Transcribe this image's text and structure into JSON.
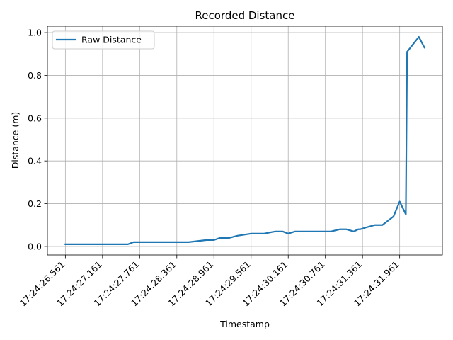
{
  "chart_data": {
    "type": "line",
    "title": "Recorded Distance",
    "xlabel": "Timestamp",
    "ylabel": "Distance (m)",
    "x_tick_labels": [
      "17:24:26.561",
      "17:24:27.161",
      "17:24:27.761",
      "17:24:28.361",
      "17:24:28.961",
      "17:24:29.561",
      "17:24:30.161",
      "17:24:30.761",
      "17:24:31.361",
      "17:24:31.961"
    ],
    "y_tick_values": [
      0.0,
      0.2,
      0.4,
      0.6,
      0.8,
      1.0
    ],
    "y_tick_labels": [
      "0.0",
      "0.2",
      "0.4",
      "0.6",
      "0.8",
      "1.0"
    ],
    "ylim": [
      -0.04,
      1.03
    ],
    "grid": true,
    "legend_position": "upper-left",
    "series": [
      {
        "name": "Raw Distance",
        "color": "#1f77b4",
        "timestamps": [
          "17:24:26.561",
          "17:24:26.821",
          "17:24:27.071",
          "17:24:27.321",
          "17:24:27.571",
          "17:24:27.661",
          "17:24:27.941",
          "17:24:28.201",
          "17:24:28.461",
          "17:24:28.551",
          "17:24:28.841",
          "17:24:28.961",
          "17:24:29.061",
          "17:24:29.211",
          "17:24:29.341",
          "17:24:29.561",
          "17:24:29.661",
          "17:24:29.771",
          "17:24:29.951",
          "17:24:30.071",
          "17:24:30.161",
          "17:24:30.271",
          "17:24:30.521",
          "17:24:30.711",
          "17:24:30.851",
          "17:24:30.991",
          "17:24:31.101",
          "17:24:31.221",
          "17:24:31.291",
          "17:24:31.321",
          "17:24:31.431",
          "17:24:31.561",
          "17:24:31.681",
          "17:24:31.861",
          "17:24:31.961",
          "17:24:32.061",
          "17:24:32.081",
          "17:24:32.271",
          "17:24:32.361"
        ],
        "values": [
          0.01,
          0.01,
          0.01,
          0.01,
          0.01,
          0.02,
          0.02,
          0.02,
          0.02,
          0.02,
          0.03,
          0.03,
          0.04,
          0.04,
          0.05,
          0.06,
          0.06,
          0.06,
          0.07,
          0.07,
          0.06,
          0.07,
          0.07,
          0.07,
          0.07,
          0.08,
          0.08,
          0.07,
          0.08,
          0.08,
          0.09,
          0.1,
          0.1,
          0.14,
          0.21,
          0.15,
          0.91,
          0.98,
          0.93
        ]
      }
    ]
  }
}
